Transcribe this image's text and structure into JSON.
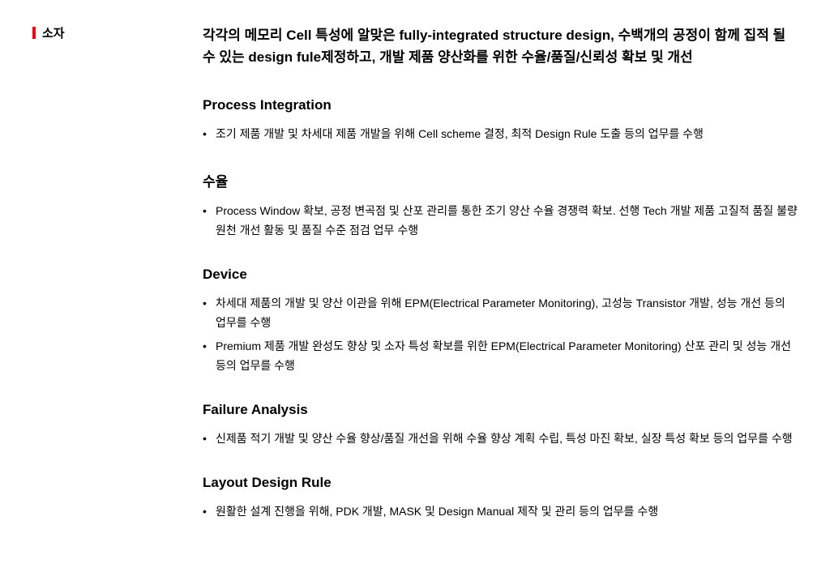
{
  "sidebar": {
    "label": "소자"
  },
  "intro": "각각의 메모리 Cell 특성에 알맞은 fully-integrated structure design, 수백개의 공정이 함께 집적 될 수 있는 design fule제정하고, 개발 제품 양산화를 위한 수율/품질/신뢰성 확보 및 개선",
  "sections": [
    {
      "heading": "Process Integration",
      "bullets": [
        "조기 제품 개발 및 차세대 제품 개발을 위해 Cell scheme 결정, 최적 Design Rule 도출 등의 업무를 수행"
      ]
    },
    {
      "heading": "수율",
      "bullets": [
        "Process Window 확보, 공정 변곡점 및 산포 관리를 통한 조기 양산 수율 경쟁력 확보. 선행 Tech 개발 제품 고질적 품질 불량 원천 개선 활동 및 품질 수준 점검 업무 수행"
      ]
    },
    {
      "heading": "Device",
      "bullets": [
        "차세대 제품의 개발 및 양산 이관을 위해 EPM(Electrical Parameter Monitoring), 고성능 Transistor 개발, 성능 개선 등의 업무를 수행",
        "Premium 제품 개발 완성도 향상 및 소자 특성 확보를 위한 EPM(Electrical Parameter Monitoring) 산포 관리 및 성능 개선 등의 업무를 수행"
      ]
    },
    {
      "heading": "Failure Analysis",
      "bullets": [
        "신제품 적기 개발 및 양산 수율 향상/품질 개선을 위해 수율 향상 계획 수립, 특성 마진 확보, 실장 특성 확보 등의 업무를 수행"
      ]
    },
    {
      "heading": "Layout Design Rule",
      "bullets": [
        "원활한 설계 진행을 위해, PDK 개발, MASK 및 Design Manual 제작 및 관리 등의 업무를 수행"
      ]
    }
  ]
}
